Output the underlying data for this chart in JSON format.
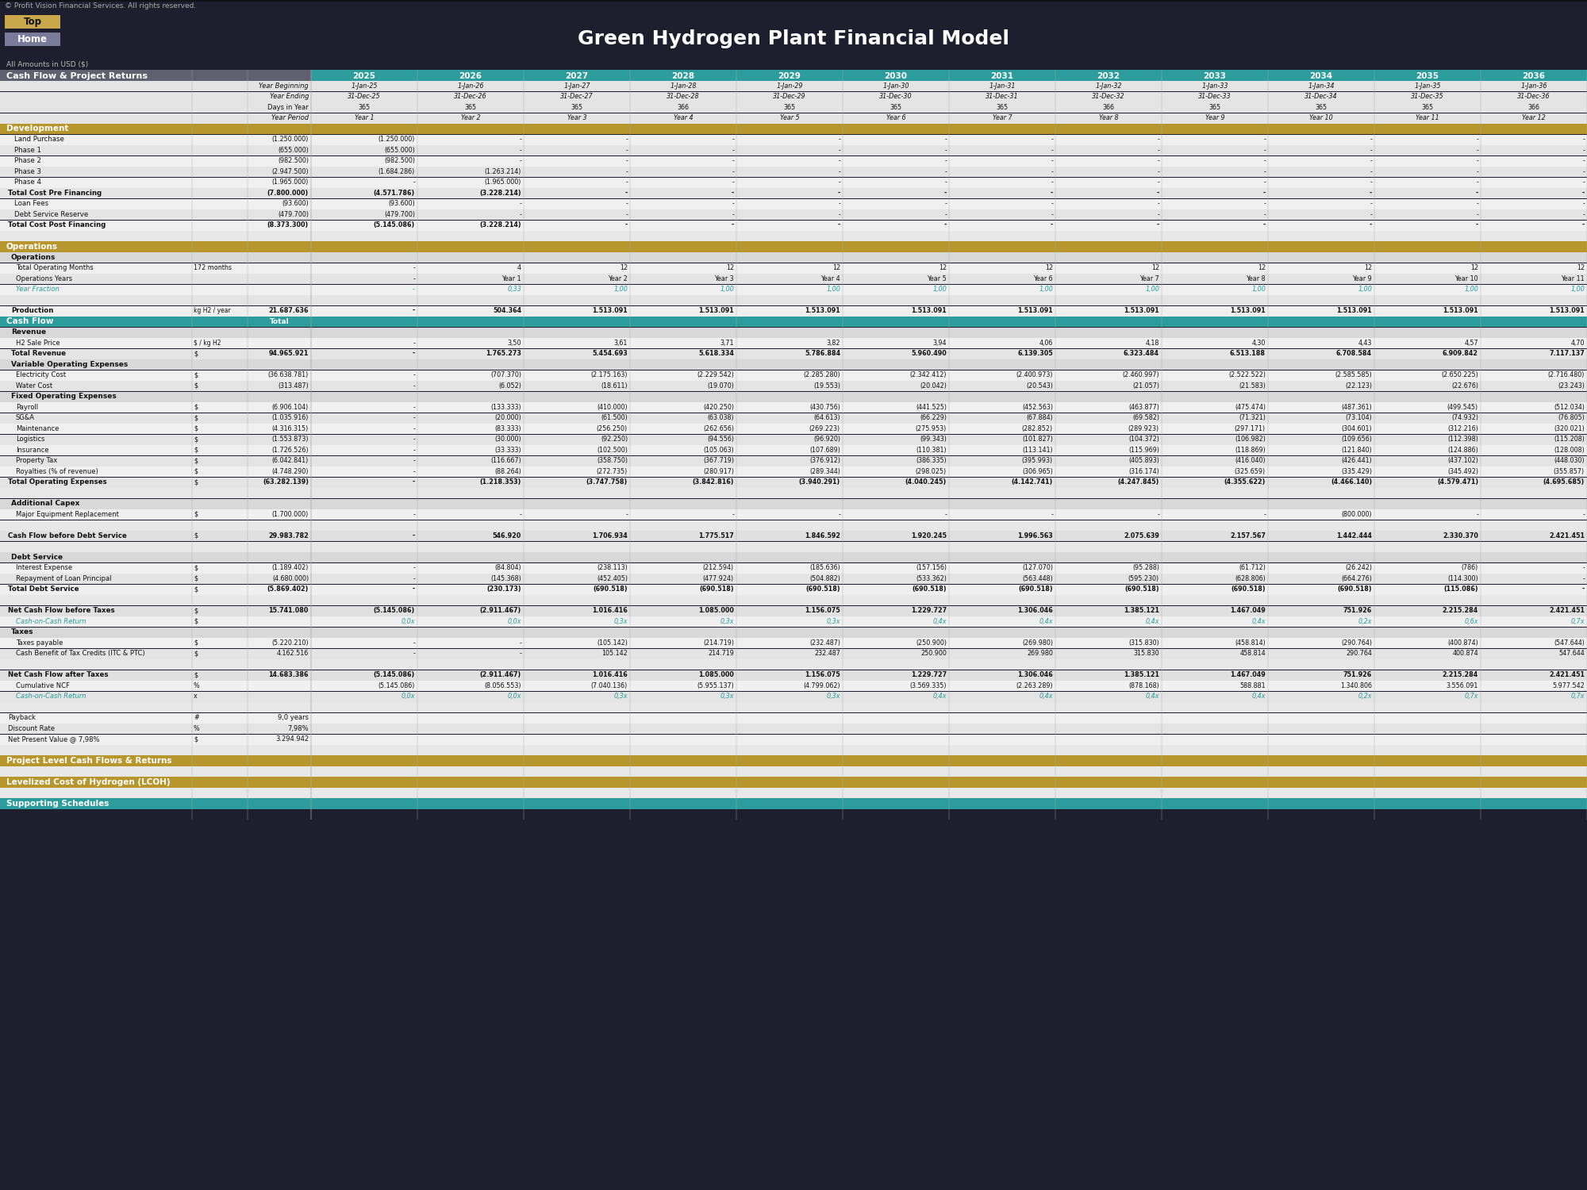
{
  "title": "Green Hydrogen Plant Financial Model",
  "copyright": "© Profit Vision Financial Services. All rights reserved.",
  "subtitle": "All Amounts in USD ($)",
  "years": [
    "2025",
    "2026",
    "2027",
    "2028",
    "2029",
    "2030",
    "2031",
    "2032",
    "2033",
    "2034",
    "2035",
    "2036"
  ],
  "year_begin": [
    "1-Jan-25",
    "1-Jan-26",
    "1-Jan-27",
    "1-Jan-28",
    "1-Jan-29",
    "1-Jan-30",
    "1-Jan-31",
    "1-Jan-32",
    "1-Jan-33",
    "1-Jan-34",
    "1-Jan-35",
    "1-Jan-36"
  ],
  "year_end": [
    "31-Dec-25",
    "31-Dec-26",
    "31-Dec-27",
    "31-Dec-28",
    "31-Dec-29",
    "31-Dec-30",
    "31-Dec-31",
    "31-Dec-32",
    "31-Dec-33",
    "31-Dec-34",
    "31-Dec-35",
    "31-Dec-36"
  ],
  "days_in_year": [
    "365",
    "365",
    "365",
    "366",
    "365",
    "365",
    "365",
    "366",
    "365",
    "365",
    "365",
    "366"
  ],
  "year_period": [
    "Year 1",
    "Year 2",
    "Year 3",
    "Year 4",
    "Year 5",
    "Year 6",
    "Year 7",
    "Year 8",
    "Year 9",
    "Year 10",
    "Year 11",
    "Year 12"
  ],
  "TEAL": "#2d9c9c",
  "GOLD": "#b8962e",
  "GRAY_HDR": "#606070",
  "LIGHT_GRAY": "#d8d8d8",
  "OFF_WHITE": "#f0f0f0",
  "LIGHTER_GRAY": "#e4e4e4",
  "TEXT_DARK": "#111111",
  "TEXT_TEAL": "#2d9c9c",
  "BG_DARK": "#1e1e2e",
  "BTN_GOLD": "#c9a84c",
  "BTN_GRAY": "#7a7a9a"
}
